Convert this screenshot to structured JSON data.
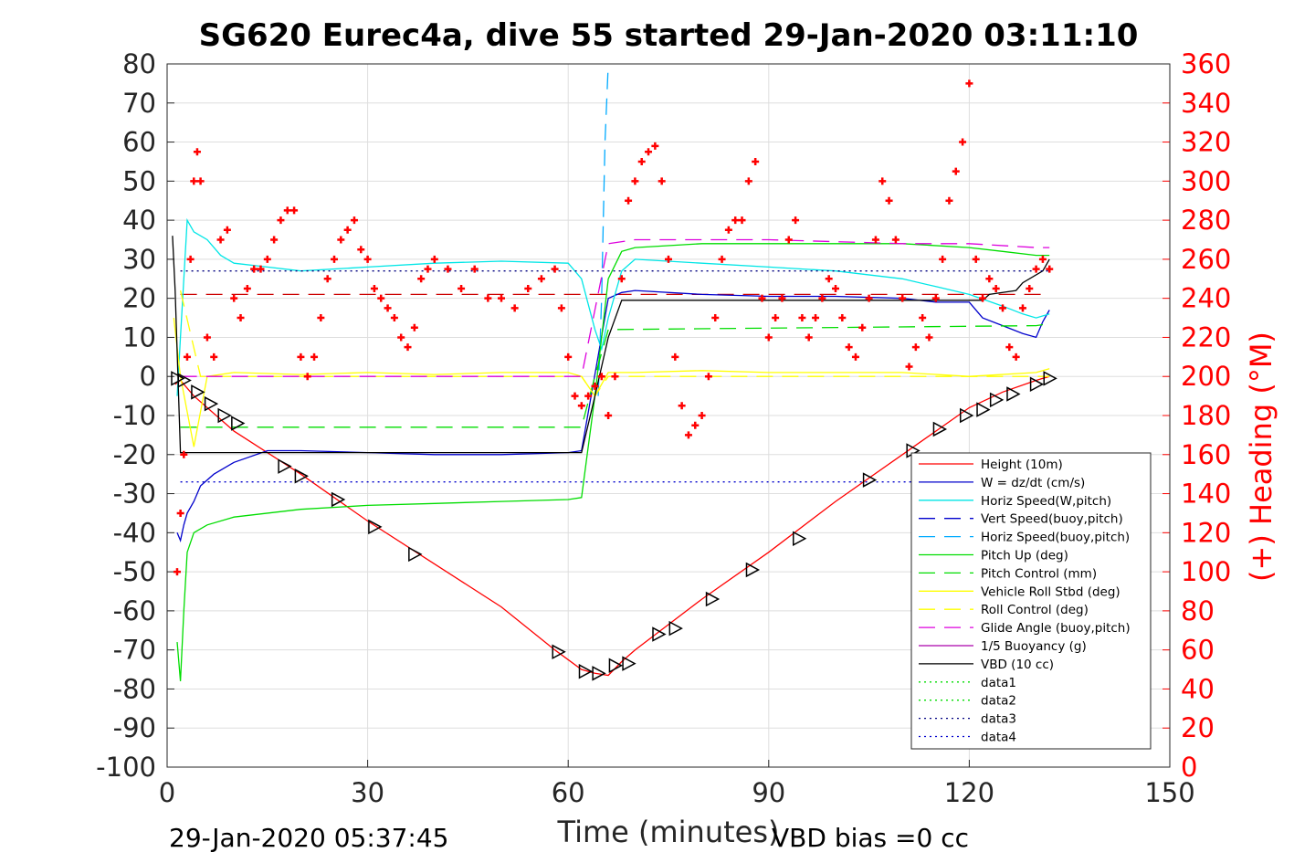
{
  "chart_data": {
    "type": "line",
    "title": "SG620 Eurec4a, dive 55 started 29-Jan-2020 03:11:10",
    "xlabel": "Time (minutes)",
    "ylabel_right": "(+) Heading (°M)",
    "xlim": [
      0,
      150
    ],
    "ylim": [
      -100,
      80
    ],
    "ylim_right": [
      0,
      360
    ],
    "x_ticks": [
      "0",
      "30",
      "60",
      "90",
      "120",
      "150"
    ],
    "y_ticks": [
      "-100",
      "-90",
      "-80",
      "-70",
      "-60",
      "-50",
      "-40",
      "-30",
      "-20",
      "-10",
      "0",
      "10",
      "20",
      "30",
      "40",
      "50",
      "60",
      "70",
      "80"
    ],
    "y_ticks_right": [
      "0",
      "20",
      "40",
      "60",
      "80",
      "100",
      "120",
      "140",
      "160",
      "180",
      "200",
      "220",
      "240",
      "260",
      "280",
      "300",
      "320",
      "340",
      "360"
    ],
    "grid": true,
    "legend_position": "lower-right",
    "footer_left": "29-Jan-2020 05:37:45",
    "footer_right": "VBD bias =0 cc",
    "series": [
      {
        "name": "Height (10m)",
        "color": "#ff0000",
        "style": "solid",
        "x": [
          1.2,
          2,
          4,
          6,
          8,
          10,
          20,
          30,
          40,
          50,
          58,
          62,
          64,
          66,
          68,
          70,
          80,
          90,
          100,
          110,
          120,
          125,
          130,
          132
        ],
        "y": [
          -2,
          -1,
          -5,
          -8,
          -11,
          -14,
          -25,
          -37,
          -48,
          -59,
          -70,
          -75,
          -76,
          -76.5,
          -73,
          -70,
          -57,
          -45,
          -32,
          -20,
          -8,
          -4,
          -1,
          0
        ]
      },
      {
        "name": "W = dz/dt (cm/s)",
        "color": "#0000cc",
        "style": "solid",
        "x": [
          1.5,
          2,
          2.5,
          3,
          4,
          5,
          7,
          10,
          15,
          20,
          30,
          40,
          50,
          60,
          62,
          66,
          68,
          70,
          80,
          90,
          100,
          110,
          115,
          120,
          122,
          125,
          128,
          130,
          131,
          132
        ],
        "y": [
          -40,
          -42,
          -38,
          -35,
          -32,
          -28,
          -25,
          -22,
          -19,
          -19,
          -19.5,
          -20,
          -20,
          -19.5,
          -19,
          20,
          21.5,
          22,
          21,
          20.5,
          20.5,
          20,
          19,
          19,
          15,
          13,
          11,
          10,
          14,
          17
        ]
      },
      {
        "name": "Horiz Speed(W,pitch)",
        "color": "#00e6e6",
        "style": "solid",
        "x": [
          1.5,
          2,
          3,
          4,
          6,
          8,
          10,
          15,
          20,
          30,
          40,
          50,
          60,
          62,
          64,
          65,
          66,
          68,
          70,
          80,
          90,
          100,
          110,
          115,
          120,
          125,
          128,
          130,
          132
        ],
        "y": [
          -5,
          10,
          40,
          37,
          35,
          31,
          29,
          28,
          27,
          28,
          29,
          29.5,
          29,
          25,
          12,
          7,
          15,
          27,
          30,
          29,
          28,
          27,
          25,
          23,
          21,
          18,
          16,
          15,
          16
        ]
      },
      {
        "name": "Vert Speed(buoy,pitch)",
        "color": "#0000cc",
        "style": "dashed",
        "x": [
          0,
          150
        ],
        "y": [
          null,
          null
        ]
      },
      {
        "name": "Horiz Speed(buoy,pitch)",
        "color": "#00aaff",
        "style": "dashed",
        "x": [
          64.5,
          65,
          65.5,
          66
        ],
        "y": [
          -5,
          20,
          60,
          80
        ]
      },
      {
        "name": "Pitch Up (deg)",
        "color": "#00dd00",
        "style": "solid",
        "x": [
          1.5,
          2,
          2.5,
          3,
          4,
          6,
          10,
          20,
          30,
          40,
          50,
          60,
          62,
          64,
          66,
          68,
          70,
          80,
          90,
          100,
          110,
          120,
          125,
          130,
          132
        ],
        "y": [
          -68,
          -78,
          -60,
          -45,
          -40,
          -38,
          -36,
          -34,
          -33,
          -32.5,
          -32,
          -31.5,
          -31,
          -5,
          25,
          32,
          33,
          34,
          34,
          34,
          34,
          33,
          32,
          31,
          31
        ]
      },
      {
        "name": "Pitch Control (mm)",
        "color": "#00dd00",
        "style": "dashed",
        "x": [
          2,
          5,
          62,
          64,
          66,
          130,
          132
        ],
        "y": [
          -13,
          -13,
          -13,
          0,
          12,
          13,
          13.5
        ]
      },
      {
        "name": "Vehicle Roll Stbd (deg)",
        "color": "#ffff00",
        "style": "solid",
        "x": [
          1,
          2,
          4,
          6,
          10,
          20,
          30,
          40,
          50,
          60,
          62,
          64,
          66,
          70,
          80,
          90,
          100,
          110,
          120,
          130,
          132
        ],
        "y": [
          15,
          0,
          -18,
          0,
          1,
          0.5,
          1,
          0.5,
          1,
          1,
          0,
          -5,
          1,
          1,
          1.5,
          1,
          1,
          1,
          0,
          1,
          2
        ]
      },
      {
        "name": "Roll Control (deg)",
        "color": "#ffff00",
        "style": "dashed",
        "x": [
          2,
          5,
          8,
          20,
          30,
          40,
          62,
          64,
          66,
          80,
          90,
          100,
          120,
          132
        ],
        "y": [
          22,
          0,
          0,
          0,
          0,
          0,
          0,
          -5,
          0,
          0,
          0,
          0,
          0,
          0
        ]
      },
      {
        "name": "Glide Angle (buoy,pitch)",
        "color": "#dd00dd",
        "style": "dashed",
        "x": [
          2,
          62,
          66,
          70,
          90,
          110,
          120,
          130,
          132
        ],
        "y": [
          0,
          0,
          34,
          35,
          35,
          34,
          34,
          33,
          33
        ]
      },
      {
        "name": "1/5 Buoyancy (g)",
        "color": "#aa00aa",
        "style": "solid",
        "x": [
          0,
          150
        ],
        "y": [
          null,
          null
        ]
      },
      {
        "name": "VBD (10 cc)",
        "color": "#000000",
        "style": "solid",
        "x": [
          0.8,
          1.2,
          2,
          10,
          20,
          40,
          62,
          64,
          66,
          68,
          90,
          110,
          122,
          123,
          127,
          128,
          131,
          132
        ],
        "y": [
          36,
          22,
          -19.5,
          -19.5,
          -19.5,
          -19.5,
          -19.5,
          -5,
          10,
          19.5,
          19.5,
          19.5,
          19.5,
          21,
          22,
          24,
          27,
          30
        ]
      },
      {
        "name": "data1",
        "color": "#00dd00",
        "style": "dotted",
        "x": [
          0,
          150
        ],
        "y": [
          null,
          null
        ]
      },
      {
        "name": "data2",
        "color": "#00dd00",
        "style": "dotted",
        "x": [
          0,
          150
        ],
        "y": [
          null,
          null
        ]
      },
      {
        "name": "data3",
        "color": "#000080",
        "style": "dotted",
        "x": [
          2,
          132
        ],
        "y": [
          27,
          27
        ]
      },
      {
        "name": "data4",
        "color": "#0000cc",
        "style": "dotted",
        "x": [
          2,
          132
        ],
        "y": [
          -27,
          -27
        ]
      }
    ],
    "reference_lines": [
      {
        "color": "#cc0000",
        "style": "dashed",
        "x": [
          2,
          132
        ],
        "y": [
          21,
          21
        ]
      }
    ],
    "heading_series": {
      "color": "#ff0000",
      "marker": "+",
      "axis": "right",
      "x": [
        1.5,
        2,
        2.5,
        3,
        3.5,
        4,
        4.5,
        5,
        6,
        7,
        8,
        9,
        10,
        11,
        12,
        13,
        14,
        15,
        16,
        17,
        18,
        19,
        20,
        21,
        22,
        23,
        24,
        25,
        26,
        27,
        28,
        29,
        30,
        31,
        32,
        33,
        34,
        35,
        36,
        37,
        38,
        39,
        40,
        42,
        44,
        46,
        48,
        50,
        52,
        54,
        56,
        58,
        59,
        60,
        61,
        62,
        63,
        64,
        65,
        66,
        67,
        68,
        69,
        70,
        71,
        72,
        73,
        74,
        75,
        76,
        77,
        78,
        79,
        80,
        81,
        82,
        83,
        84,
        85,
        86,
        87,
        88,
        89,
        90,
        91,
        92,
        93,
        94,
        95,
        96,
        97,
        98,
        99,
        100,
        101,
        102,
        103,
        104,
        105,
        106,
        107,
        108,
        109,
        110,
        111,
        112,
        113,
        114,
        115,
        116,
        117,
        118,
        119,
        120,
        121,
        122,
        123,
        124,
        125,
        126,
        127,
        128,
        129,
        130,
        131,
        132
      ],
      "y": [
        100,
        130,
        160,
        210,
        260,
        300,
        315,
        300,
        220,
        210,
        270,
        275,
        240,
        230,
        245,
        255,
        255,
        260,
        270,
        280,
        285,
        285,
        210,
        200,
        210,
        230,
        250,
        260,
        270,
        275,
        280,
        265,
        260,
        245,
        240,
        235,
        230,
        220,
        215,
        225,
        250,
        255,
        260,
        255,
        245,
        255,
        240,
        240,
        235,
        245,
        250,
        255,
        235,
        210,
        190,
        185,
        190,
        195,
        200,
        180,
        200,
        250,
        290,
        300,
        310,
        315,
        318,
        300,
        260,
        210,
        185,
        170,
        175,
        180,
        200,
        230,
        260,
        275,
        280,
        280,
        300,
        310,
        240,
        220,
        230,
        240,
        270,
        280,
        230,
        220,
        230,
        240,
        250,
        245,
        230,
        215,
        210,
        225,
        240,
        270,
        300,
        290,
        270,
        240,
        205,
        215,
        230,
        220,
        240,
        260,
        290,
        305,
        320,
        350,
        260,
        240,
        250,
        245,
        235,
        215,
        210,
        235,
        245,
        255,
        260,
        255
      ]
    },
    "direction_markers": {
      "marker": "triangle",
      "x": [
        1.5,
        2.5,
        4.5,
        6.5,
        8.5,
        10.5,
        17.5,
        20,
        25.5,
        31,
        37,
        58.5,
        62.5,
        64.5,
        67,
        69,
        73.5,
        76,
        81.5,
        87.5,
        94.5,
        105,
        111.5,
        115.5,
        119.5,
        122,
        124,
        126.5,
        130,
        132
      ],
      "y": [
        -0.5,
        -1,
        -4,
        -7,
        -10,
        -12,
        -23,
        -25.5,
        -31.5,
        -38.5,
        -45.5,
        -70.5,
        -75.5,
        -76,
        -74,
        -73.5,
        -66,
        -64.5,
        -57,
        -49.5,
        -41.5,
        -26.5,
        -19,
        -13.5,
        -10,
        -8.5,
        -6,
        -4.5,
        -2,
        -0.5
      ]
    }
  }
}
